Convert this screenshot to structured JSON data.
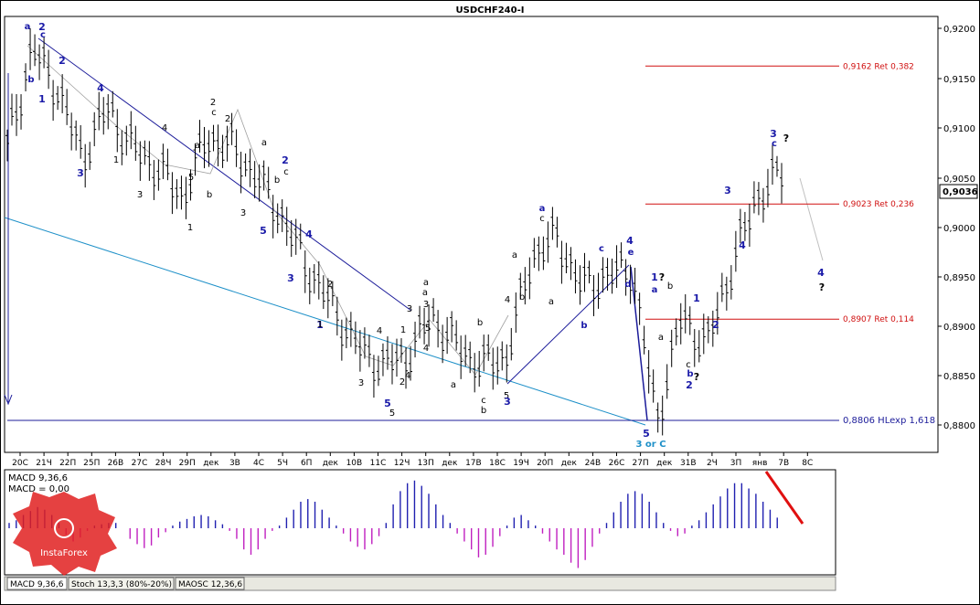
{
  "title": "USDCHF240-I",
  "price_scale": [
    "0,9200",
    "0,9150",
    "0,9100",
    "0,9050",
    "0,9000",
    "0,8950",
    "0,8900",
    "0,8850",
    "0,8800"
  ],
  "current_price": "0,9036",
  "date_labels": [
    "20С",
    "21Ч",
    "22П",
    "25П",
    "26В",
    "27С",
    "28Ч",
    "29П",
    "дек",
    "3В",
    "4С",
    "5Ч",
    "6П",
    "дек",
    "10В",
    "11С",
    "12Ч",
    "13П",
    "дек",
    "17В",
    "18С",
    "19Ч",
    "20П",
    "дек",
    "24В",
    "26С",
    "27П",
    "дек",
    "31В",
    "2Ч",
    "3П",
    "янв",
    "7В",
    "8С"
  ],
  "ret_lines": [
    {
      "label": "0,9162 Ret 0,382",
      "price": 0.9162
    },
    {
      "label": "0,9023 Ret 0,236",
      "price": 0.9023
    },
    {
      "label": "0,8907 Ret 0,114",
      "price": 0.8907
    }
  ],
  "hl_line": {
    "label": "0,8806 HLexp 1,618",
    "price": 0.8806
  },
  "macd": {
    "title": "MACD 9,36,6",
    "value_label": "MACD = 0,00"
  },
  "tabs": [
    "MACD 9,36,6",
    "Stoch 13,3,3 (80%-20%)",
    "MAOSC 12,36,6"
  ],
  "brand": "InstaForex",
  "wave_labels": [
    {
      "t": "a",
      "c": "blue"
    },
    {
      "t": "2",
      "c": "blue"
    },
    {
      "t": "c",
      "c": "blue"
    },
    {
      "t": "b",
      "c": "blue"
    },
    {
      "t": "1",
      "c": "blue"
    },
    {
      "t": "2",
      "c": "blue"
    },
    {
      "t": "a",
      "c": "black"
    },
    {
      "t": "b",
      "c": "black"
    },
    {
      "t": "3",
      "c": "blue"
    },
    {
      "t": "4",
      "c": "blue"
    },
    {
      "t": "2",
      "c": "black"
    },
    {
      "t": "c",
      "c": "black"
    },
    {
      "t": "1",
      "c": "black"
    },
    {
      "t": "3",
      "c": "black"
    },
    {
      "t": "5",
      "c": "black"
    },
    {
      "t": "5",
      "c": "blue"
    },
    {
      "t": "1",
      "c": "black"
    },
    {
      "t": "a",
      "c": "black"
    },
    {
      "t": "b",
      "c": "black"
    },
    {
      "t": "2",
      "c": "black"
    },
    {
      "t": "4",
      "c": "black"
    },
    {
      "t": "3",
      "c": "black"
    },
    {
      "t": "a",
      "c": "black"
    },
    {
      "t": "4",
      "c": "black"
    },
    {
      "t": "2",
      "c": "blue"
    },
    {
      "t": "c",
      "c": "black"
    },
    {
      "t": "5",
      "c": "black"
    },
    {
      "t": "1",
      "c": "blue"
    },
    {
      "t": "3",
      "c": "blue"
    },
    {
      "t": "4",
      "c": "blue"
    },
    {
      "t": "2",
      "c": "black"
    },
    {
      "t": "1",
      "c": "black"
    },
    {
      "t": "3",
      "c": "black"
    },
    {
      "t": "4",
      "c": "black"
    },
    {
      "t": "5",
      "c": "blue"
    },
    {
      "t": "3",
      "c": "black"
    },
    {
      "t": "a",
      "c": "black"
    },
    {
      "t": "5",
      "c": "black"
    },
    {
      "t": "3",
      "c": "black"
    },
    {
      "t": "1",
      "c": "black"
    },
    {
      "t": "2",
      "c": "black"
    },
    {
      "t": "4",
      "c": "black"
    },
    {
      "t": "a",
      "c": "black"
    },
    {
      "t": "b",
      "c": "black"
    },
    {
      "t": "c",
      "c": "black"
    },
    {
      "t": "4",
      "c": "black"
    },
    {
      "t": "5",
      "c": "black"
    },
    {
      "t": "3",
      "c": "blue"
    },
    {
      "t": "b",
      "c": "black"
    },
    {
      "t": "a",
      "c": "blue"
    },
    {
      "t": "c",
      "c": "black"
    },
    {
      "t": "a",
      "c": "black"
    },
    {
      "t": "b",
      "c": "black"
    },
    {
      "t": "a",
      "c": "black"
    },
    {
      "t": "c",
      "c": "blue"
    },
    {
      "t": "b",
      "c": "blue"
    },
    {
      "t": "4",
      "c": "blue"
    },
    {
      "t": "e",
      "c": "blue"
    },
    {
      "t": "d",
      "c": "blue"
    },
    {
      "t": "5",
      "c": "blue"
    },
    {
      "t": "3 or C",
      "c": "teal"
    },
    {
      "t": "1",
      "c": "blue"
    },
    {
      "t": "?",
      "c": "black"
    },
    {
      "t": "a",
      "c": "blue"
    },
    {
      "t": "b",
      "c": "black"
    },
    {
      "t": "a",
      "c": "black"
    },
    {
      "t": "c",
      "c": "black"
    },
    {
      "t": "b",
      "c": "blue"
    },
    {
      "t": "?",
      "c": "black"
    },
    {
      "t": "2",
      "c": "blue"
    },
    {
      "t": "1",
      "c": "blue"
    },
    {
      "t": "2",
      "c": "blue"
    },
    {
      "t": "3",
      "c": "blue"
    },
    {
      "t": "4",
      "c": "blue"
    },
    {
      "t": "3",
      "c": "blue"
    },
    {
      "t": "c",
      "c": "blue"
    },
    {
      "t": "?",
      "c": "black"
    },
    {
      "t": "4",
      "c": "blue"
    },
    {
      "t": "?",
      "c": "black"
    }
  ],
  "chart_data": {
    "type": "line",
    "title": "USDCHF240-I",
    "ylim": [
      0.878,
      0.922
    ],
    "x": [
      "20С",
      "21Ч",
      "22П",
      "25П",
      "26В",
      "27С",
      "28Ч",
      "29П",
      "дек",
      "3В",
      "4С",
      "5Ч",
      "6П",
      "дек",
      "10В",
      "11С",
      "12Ч",
      "13П",
      "дек",
      "17В",
      "18С",
      "19Ч",
      "20П",
      "дек",
      "24В",
      "26С",
      "27П",
      "дек",
      "31В",
      "2Ч",
      "3П",
      "янв"
    ],
    "series": [
      {
        "values": [
          0.908,
          0.918,
          0.914,
          0.907,
          0.912,
          0.908,
          0.906,
          0.903,
          0.909,
          0.908,
          0.905,
          0.901,
          0.896,
          0.892,
          0.888,
          0.886,
          0.887,
          0.891,
          0.888,
          0.886,
          0.887,
          0.897,
          0.899,
          0.894,
          0.895,
          0.896,
          0.8805,
          0.891,
          0.888,
          0.896,
          0.903,
          0.9055
        ]
      }
    ],
    "macd_values": [
      4,
      6,
      10,
      13,
      16,
      14,
      10,
      4,
      -5,
      -10,
      -7,
      -2,
      2,
      3,
      4,
      4,
      0,
      -8,
      -12,
      -15,
      -13,
      -7,
      -3,
      2,
      5,
      7,
      9,
      10,
      9,
      6,
      3,
      -2,
      -8,
      -16,
      -20,
      -16,
      -8,
      -2,
      2,
      8,
      14,
      20,
      22,
      20,
      14,
      8,
      2,
      -4,
      -10,
      -14,
      -16,
      -12,
      -6,
      4,
      18,
      28,
      34,
      36,
      32,
      26,
      18,
      10,
      4,
      -4,
      -10,
      -16,
      -22,
      -20,
      -14,
      -6,
      2,
      8,
      10,
      6,
      2,
      -4,
      -10,
      -16,
      -20,
      -26,
      -30,
      -24,
      -14,
      -4,
      4,
      12,
      20,
      26,
      28,
      26,
      20,
      12,
      4,
      -2,
      -6,
      -4,
      2,
      6,
      12,
      18,
      24,
      30,
      34,
      34,
      30,
      26,
      20,
      14,
      8
    ]
  }
}
